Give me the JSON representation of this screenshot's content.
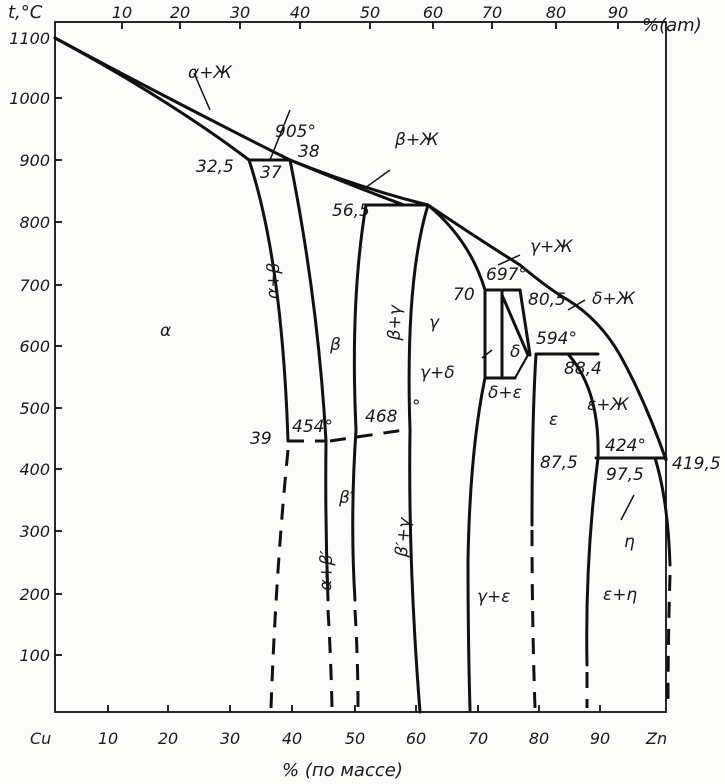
{
  "axes": {
    "y_title": "t,°C",
    "top_unit": "%(am)",
    "bottom_title": "% (по массе)",
    "left_end": "Cu",
    "right_end": "Zn",
    "y_ticks": [
      "1100",
      "1000",
      "900",
      "800",
      "700",
      "600",
      "500",
      "400",
      "300",
      "200",
      "100"
    ],
    "bottom_ticks": [
      "10",
      "20",
      "30",
      "40",
      "50",
      "60",
      "70",
      "80",
      "90"
    ],
    "top_ticks": [
      "10",
      "20",
      "30",
      "40",
      "50",
      "60",
      "70",
      "80",
      "90"
    ]
  },
  "phases": {
    "alpha": "α",
    "alpha_liquid": "α+Ж",
    "alpha_beta": "α+β",
    "beta": "β",
    "beta_liquid": "β+Ж",
    "beta_gamma": "β+γ",
    "gamma": "γ",
    "gamma_liquid": "γ+Ж",
    "gamma_delta": "γ+δ",
    "delta": "δ",
    "delta_liquid": "δ+Ж",
    "delta_epsilon": "δ+ε",
    "epsilon": "ε",
    "epsilon_liquid": "ε+Ж",
    "eta": "η",
    "beta_prime": "β′",
    "alpha_beta_prime": "α+β′",
    "beta_prime_gamma": "β′+γ",
    "gamma_epsilon": "γ+ε",
    "epsilon_eta": "ε+η"
  },
  "points": {
    "p905": "905°",
    "p32_5": "32,5",
    "p38": "38",
    "p37": "37",
    "p56_5": "56,5",
    "p70": "70",
    "p697": "697°",
    "p80_5": "80,5",
    "p594": "594°",
    "p88_4": "88,4",
    "p39": "39",
    "p454": "454°",
    "p468": "468",
    "p468_deg": "°",
    "p424": "424°",
    "p87_5": "87,5",
    "p97_5": "97,5",
    "p419_5": "419,5"
  }
}
